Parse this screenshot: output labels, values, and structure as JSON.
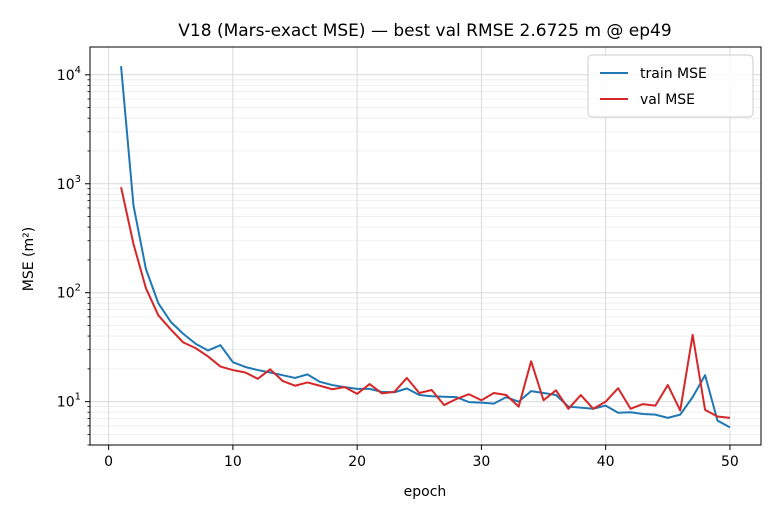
{
  "chart_data": {
    "type": "line",
    "title": "V18 (Mars-exact MSE) — best val RMSE 2.6725 m @ ep49",
    "xlabel": "epoch",
    "ylabel": "MSE (m²)",
    "xlim": [
      -1.5,
      52.5
    ],
    "ylim": [
      4,
      18000
    ],
    "yscale": "log",
    "xticks": [
      0,
      10,
      20,
      30,
      40,
      50
    ],
    "yticks": [
      {
        "value": 10,
        "mantissa": "10",
        "exp": "1"
      },
      {
        "value": 100,
        "mantissa": "10",
        "exp": "2"
      },
      {
        "value": 1000,
        "mantissa": "10",
        "exp": "3"
      },
      {
        "value": 10000,
        "mantissa": "10",
        "exp": "4"
      }
    ],
    "grid": true,
    "legend_position": "top-right",
    "series": [
      {
        "name": "train MSE",
        "color": "#1f77b4",
        "x": [
          1,
          2,
          3,
          4,
          5,
          6,
          7,
          8,
          9,
          10,
          11,
          12,
          13,
          14,
          15,
          16,
          17,
          18,
          19,
          20,
          21,
          22,
          23,
          24,
          25,
          26,
          27,
          28,
          29,
          30,
          31,
          32,
          33,
          34,
          35,
          36,
          37,
          38,
          39,
          40,
          41,
          42,
          43,
          44,
          45,
          46,
          47,
          48,
          49,
          50
        ],
        "y": [
          12000,
          630,
          165,
          80,
          54,
          42,
          34,
          29.5,
          33,
          23,
          20.8,
          19.5,
          18.5,
          17.5,
          16.5,
          17.8,
          15.2,
          14.2,
          13.6,
          13.1,
          13.1,
          12.3,
          12.2,
          13.2,
          11.5,
          11.2,
          11.1,
          11,
          9.9,
          9.8,
          9.6,
          11,
          10,
          12.5,
          12,
          11.5,
          9,
          8.8,
          8.6,
          9.2,
          7.9,
          8,
          7.7,
          7.6,
          7.1,
          7.6,
          11,
          17.5,
          6.7,
          5.8
        ]
      },
      {
        "name": "val MSE",
        "color": "#d62728",
        "x": [
          1,
          2,
          3,
          4,
          5,
          6,
          7,
          8,
          9,
          10,
          11,
          12,
          13,
          14,
          15,
          16,
          17,
          18,
          19,
          20,
          21,
          22,
          23,
          24,
          25,
          26,
          27,
          28,
          29,
          30,
          31,
          32,
          33,
          34,
          35,
          36,
          37,
          38,
          39,
          40,
          41,
          42,
          43,
          44,
          45,
          46,
          47,
          48,
          49,
          50
        ],
        "y": [
          930,
          280,
          110,
          62,
          46,
          35,
          31,
          26,
          21,
          19.5,
          18.5,
          16.2,
          19.8,
          15.5,
          14,
          15,
          14,
          13,
          13.6,
          11.8,
          14.5,
          11.9,
          12.3,
          16.5,
          12,
          12.8,
          9.3,
          10.6,
          11.7,
          10.3,
          12,
          11.5,
          9,
          23.5,
          10.3,
          12.7,
          8.6,
          11.5,
          8.6,
          10,
          13.3,
          8.6,
          9.5,
          9.2,
          14.2,
          8.3,
          41,
          8.4,
          7.3,
          7.1
        ]
      }
    ]
  }
}
